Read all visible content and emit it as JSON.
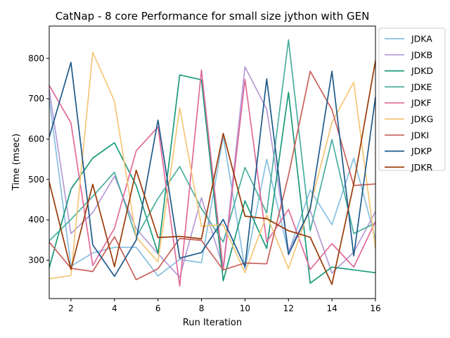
{
  "chart_data": {
    "type": "line",
    "title": "CatNap - 8 core Performance for small size jython with GEN",
    "xlabel": "Run Iteration",
    "ylabel": "Time (msec)",
    "xlim": [
      1,
      16
    ],
    "ylim": [
      205,
      880
    ],
    "x_ticks": [
      2,
      4,
      6,
      8,
      10,
      12,
      14,
      16
    ],
    "y_ticks": [
      300,
      400,
      500,
      600,
      700,
      800
    ],
    "grid": false,
    "legend_position": "outside-right-top",
    "x": [
      1,
      2,
      3,
      4,
      5,
      6,
      7,
      8,
      9,
      10,
      11,
      12,
      13,
      14,
      15,
      16
    ],
    "series": [
      {
        "name": "JDKA",
        "color": "#88bfe0",
        "values": [
          700,
          285,
          318,
          332,
          332,
          261,
          302,
          294,
          607,
          278,
          550,
          318,
          474,
          388,
          553,
          352
        ]
      },
      {
        "name": "JDKB",
        "color": "#b59ad7",
        "values": [
          722,
          366,
          418,
          508,
          378,
          316,
          258,
          455,
          281,
          779,
          674,
          323,
          423,
          268,
          320,
          420
        ]
      },
      {
        "name": "JDKD",
        "color": "#1a9a7a",
        "values": [
          281,
          476,
          553,
          591,
          485,
          317,
          759,
          747,
          249,
          447,
          329,
          716,
          243,
          283,
          276,
          269
        ]
      },
      {
        "name": "JDKE",
        "color": "#4aaf9e",
        "values": [
          348,
          401,
          458,
          518,
          357,
          453,
          532,
          428,
          345,
          530,
          417,
          846,
          373,
          599,
          366,
          392
        ]
      },
      {
        "name": "JDKF",
        "color": "#e06a9a",
        "values": [
          733,
          640,
          287,
          379,
          571,
          630,
          236,
          771,
          276,
          748,
          345,
          426,
          277,
          341,
          283,
          396
        ]
      },
      {
        "name": "JDKG",
        "color": "#f5c677",
        "values": [
          254,
          262,
          815,
          694,
          357,
          296,
          677,
          384,
          388,
          269,
          412,
          279,
          434,
          641,
          741,
          329
        ]
      },
      {
        "name": "JDKI",
        "color": "#c8605a",
        "values": [
          345,
          280,
          272,
          358,
          252,
          279,
          354,
          349,
          276,
          293,
          291,
          510,
          768,
          673,
          485,
          489
        ]
      },
      {
        "name": "JDKP",
        "color": "#1f5a8a",
        "values": [
          605,
          790,
          338,
          260,
          350,
          647,
          305,
          319,
          401,
          284,
          749,
          314,
          427,
          768,
          311,
          704
        ]
      },
      {
        "name": "JDKR",
        "color": "#9a3a08",
        "values": [
          494,
          277,
          488,
          284,
          523,
          356,
          359,
          353,
          614,
          409,
          403,
          373,
          357,
          240,
          489,
          794
        ]
      }
    ]
  }
}
